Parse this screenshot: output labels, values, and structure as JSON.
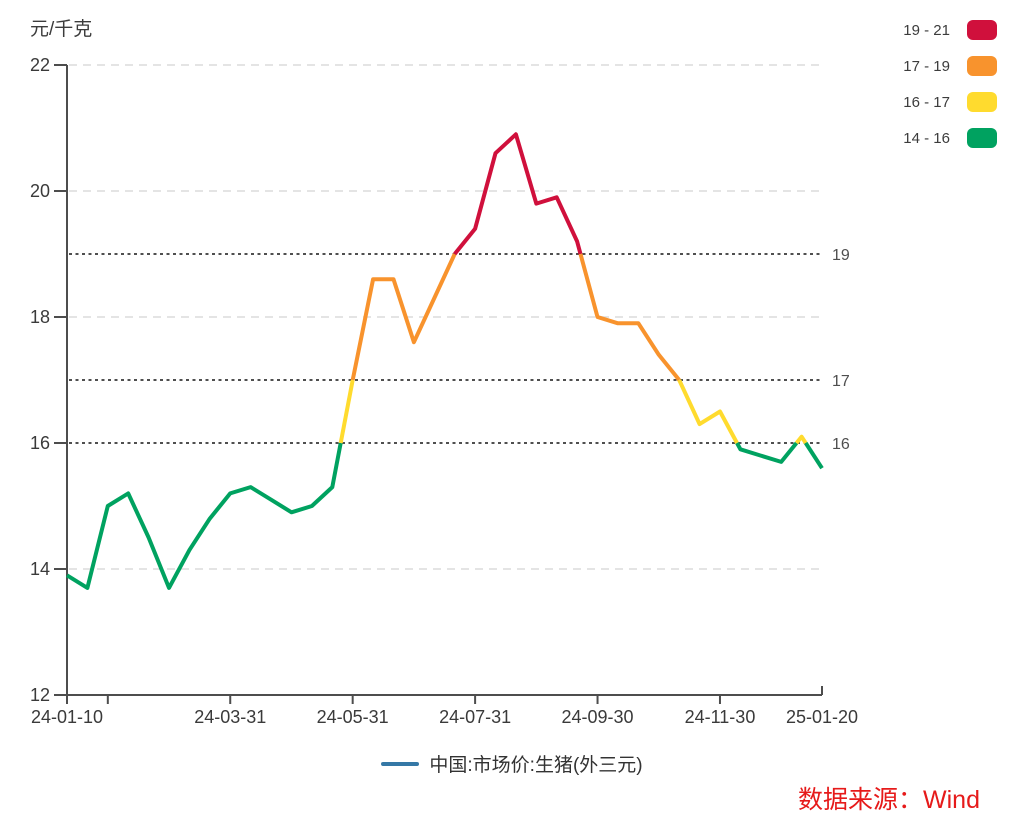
{
  "chart_data": {
    "type": "line",
    "title": "",
    "xlabel": "",
    "ylabel": "元/千克",
    "series_name": "中国:市场价:生猪(外三元)",
    "series_line_color": "#3578A6",
    "x": [
      "24-01-10",
      "24-01-20",
      "24-01-31",
      "24-02-10",
      "24-02-20",
      "24-02-29",
      "24-03-10",
      "24-03-20",
      "24-03-31",
      "24-04-10",
      "24-04-20",
      "24-04-30",
      "24-05-10",
      "24-05-20",
      "24-05-31",
      "24-06-10",
      "24-06-20",
      "24-06-30",
      "24-07-10",
      "24-07-20",
      "24-07-31",
      "24-08-10",
      "24-08-20",
      "24-08-31",
      "24-09-10",
      "24-09-20",
      "24-09-30",
      "24-10-10",
      "24-10-20",
      "24-10-31",
      "24-11-10",
      "24-11-20",
      "24-11-30",
      "24-12-10",
      "24-12-20",
      "24-12-31",
      "25-01-10",
      "25-01-20"
    ],
    "values": [
      13.9,
      13.7,
      15.0,
      15.2,
      14.5,
      13.7,
      14.3,
      14.8,
      15.2,
      15.3,
      15.1,
      14.9,
      15.0,
      15.3,
      17.0,
      18.6,
      18.6,
      17.6,
      18.3,
      19.0,
      19.4,
      20.6,
      20.9,
      19.8,
      19.9,
      19.2,
      18.0,
      17.9,
      17.9,
      17.4,
      17.0,
      16.3,
      16.5,
      15.9,
      15.8,
      15.7,
      16.1,
      15.6
    ],
    "ylim": [
      12,
      22
    ],
    "y_axis": {
      "ticks": [
        12,
        14,
        16,
        18,
        20,
        22
      ]
    },
    "x_tick_labels": [
      "24-01-10",
      "24-03-31",
      "24-05-31",
      "24-07-31",
      "24-09-30",
      "24-11-30",
      "25-01-20"
    ],
    "label_point_indices": [
      0,
      8,
      14,
      20,
      26,
      32,
      37
    ],
    "tick_point_indices": [
      0,
      2,
      8,
      14,
      20,
      26,
      32,
      37
    ],
    "reference_lines": [
      {
        "value": 19,
        "label": "19"
      },
      {
        "value": 17,
        "label": "17"
      },
      {
        "value": 16,
        "label": "16"
      }
    ],
    "legend_bands": [
      {
        "label": "19 - 21",
        "min": 19,
        "max": 21,
        "color": "#D0103C"
      },
      {
        "label": "17 - 19",
        "min": 17,
        "max": 19,
        "color": "#F8932D"
      },
      {
        "label": "16 - 17",
        "min": 16,
        "max": 17,
        "color": "#FFDB2E"
      },
      {
        "label": "14 - 16",
        "min": 14,
        "max": 16,
        "color": "#00A260"
      }
    ],
    "grid": "horizontal-dashed",
    "legend_position": "top-right"
  },
  "source_note": {
    "text": "数据来源：Wind",
    "color": "#E61A1A"
  }
}
